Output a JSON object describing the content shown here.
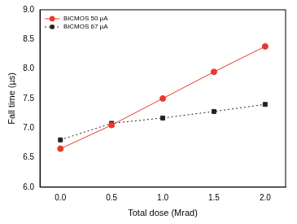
{
  "chart_data": {
    "type": "line",
    "x_label": "Total dose (Mrad)",
    "y_label": "Fall time (µs)",
    "x": [
      0,
      0.5,
      1,
      1.5,
      2
    ],
    "series": [
      {
        "name": "BiCMOS 50 µA",
        "color": "#e8382f",
        "marker": "circle",
        "line_style": "solid",
        "values": [
          6.65,
          7.05,
          7.5,
          7.95,
          8.38
        ]
      },
      {
        "name": "BiCMOS 67 µA",
        "color": "#222222",
        "marker": "square",
        "line_style": "dotted",
        "values": [
          6.8,
          7.08,
          7.17,
          7.28,
          7.4
        ]
      }
    ],
    "xlim": [
      -0.2,
      2.2
    ],
    "xticks": [
      {
        "value": 0,
        "label": "0.0"
      },
      0.5,
      {
        "value": 1,
        "label": "1.0"
      },
      1.5,
      {
        "value": 2,
        "label": "2.0"
      }
    ],
    "ylim": [
      6,
      9
    ],
    "yticks": [
      {
        "value": 6,
        "label": "6.0"
      },
      6.5,
      {
        "value": 7,
        "label": "7.0"
      },
      7.5,
      {
        "value": 8,
        "label": "8.0"
      },
      8.5,
      {
        "value": 9,
        "label": "9.0"
      }
    ],
    "grid": false,
    "legend": "upper left"
  }
}
